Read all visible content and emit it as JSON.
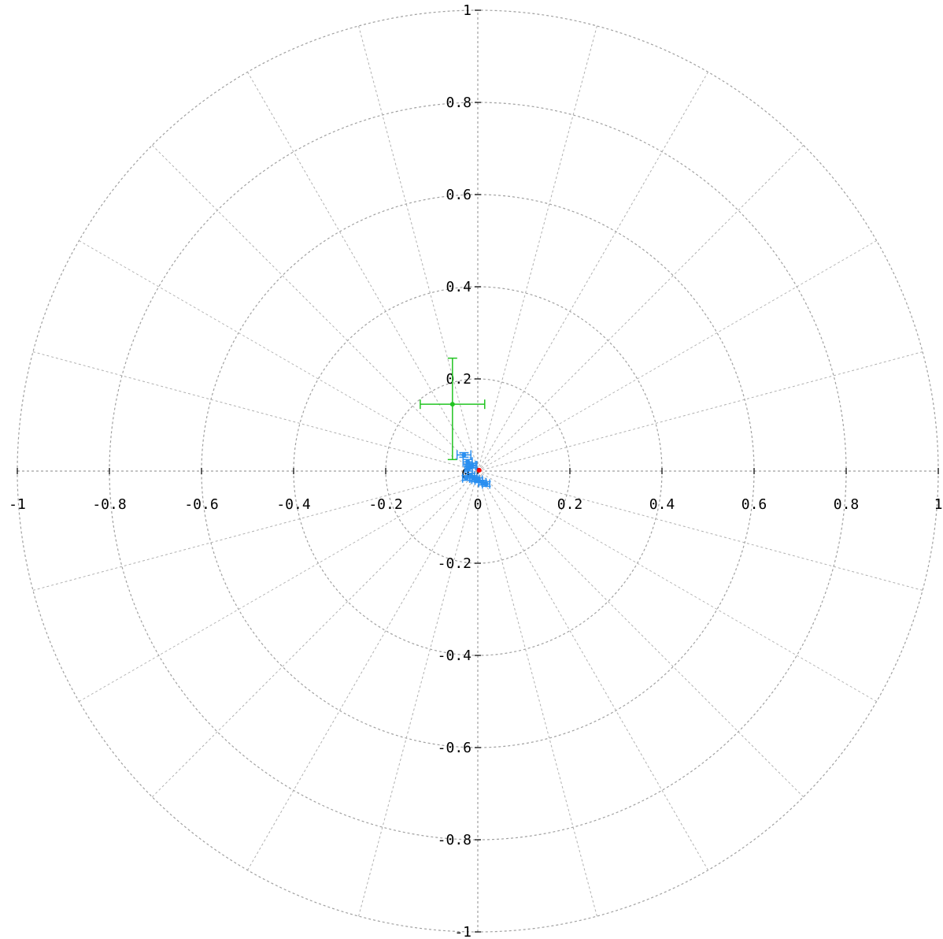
{
  "chart_data": {
    "type": "scatter",
    "title": "",
    "xlabel": "",
    "ylabel": "",
    "xlim": [
      -1,
      1
    ],
    "ylim": [
      -1,
      1
    ],
    "grid": true,
    "grid_style": "polar",
    "ring_radii": [
      0.2,
      0.4,
      0.6,
      0.8,
      1.0
    ],
    "spoke_step_degrees": 15,
    "x_ticks": [
      "-1",
      "-0.8",
      "-0.6",
      "-0.4",
      "-0.2",
      "0",
      "0.2",
      "0.4",
      "0.6",
      "0.8",
      "1"
    ],
    "y_ticks": [
      "1",
      "0.8",
      "0.6",
      "0.4",
      "0.2",
      "-0.2",
      "-0.4",
      "-0.6",
      "-0.8",
      "-1"
    ],
    "origin_label": "0",
    "series": [
      {
        "color": "#22c422",
        "points": [
          {
            "x": -0.055,
            "y": 0.145,
            "xerr": 0.07,
            "yerr_up": 0.1,
            "yerr_down": 0.12
          }
        ]
      },
      {
        "color": "#2a8ff0",
        "points": [
          {
            "x": -0.03,
            "y": 0.035,
            "xerr": 0.015,
            "yerr": 0.005
          },
          {
            "x": -0.022,
            "y": 0.02,
            "xerr": 0.01,
            "yerr": 0.005
          },
          {
            "x": -0.015,
            "y": 0.012,
            "xerr": 0.01,
            "yerr": 0.005
          },
          {
            "x": -0.012,
            "y": 0.012,
            "xerr": 0.01,
            "yerr": 0.005
          },
          {
            "x": -0.02,
            "y": 0.005,
            "xerr": 0.008,
            "yerr": 0.005
          },
          {
            "x": -0.015,
            "y": -0.01,
            "xerr": 0.008,
            "yerr": 0.005
          },
          {
            "x": -0.01,
            "y": -0.015,
            "xerr": 0.008,
            "yerr": 0.005
          },
          {
            "x": -0.005,
            "y": -0.018,
            "xerr": 0.008,
            "yerr": 0.005
          },
          {
            "x": 0.002,
            "y": -0.02,
            "xerr": 0.008,
            "yerr": 0.005
          },
          {
            "x": 0.01,
            "y": -0.025,
            "xerr": 0.008,
            "yerr": 0.005
          },
          {
            "x": 0.018,
            "y": -0.028,
            "xerr": 0.008,
            "yerr": 0.005
          },
          {
            "x": -0.025,
            "y": -0.015,
            "xerr": 0.008,
            "yerr": 0.005
          }
        ]
      },
      {
        "color": "#ff0000",
        "points": [
          {
            "x": 0.003,
            "y": 0.002
          }
        ]
      }
    ]
  }
}
